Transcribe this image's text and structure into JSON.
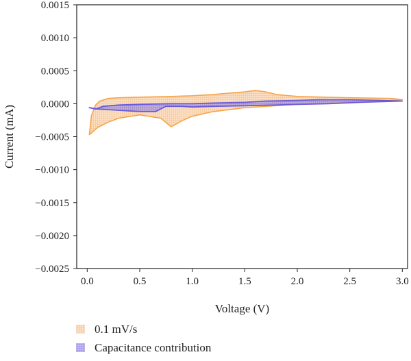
{
  "chart_data": {
    "type": "area",
    "xlabel": "Voltage (V)",
    "ylabel": "Current (mA)",
    "xlim": [
      -0.1,
      3.05
    ],
    "ylim": [
      -0.0025,
      0.0015
    ],
    "xticks": [
      0.0,
      0.5,
      1.0,
      1.5,
      2.0,
      2.5,
      3.0
    ],
    "xtick_labels": [
      "0.0",
      "0.5",
      "1.0",
      "1.5",
      "2.0",
      "2.5",
      "3.0"
    ],
    "yticks": [
      0.0015,
      0.001,
      0.0005,
      0.0,
      -0.0005,
      -0.001,
      -0.0015,
      -0.002,
      -0.0025
    ],
    "ytick_labels": [
      "0.0015",
      "0.0010",
      "0.0005",
      "0.0000",
      "−0.0005",
      "−0.0010",
      "−0.0015",
      "−0.0020",
      "−0.0025"
    ],
    "legend_position": "bottom-left-outside",
    "series": [
      {
        "name": "0.1 mV/s",
        "color": "#f5a54a",
        "fill": "#f8c79a",
        "x": [
          0.02,
          0.05,
          0.1,
          0.2,
          0.3,
          0.5,
          0.7,
          0.8,
          0.9,
          1.0,
          1.2,
          1.5,
          1.8,
          2.0,
          2.2,
          2.5,
          2.8,
          3.0,
          2.9,
          2.5,
          2.0,
          1.8,
          1.7,
          1.6,
          1.5,
          1.2,
          1.0,
          0.8,
          0.5,
          0.3,
          0.2,
          0.12,
          0.08,
          0.04,
          0.02
        ],
        "y": [
          -0.00047,
          -0.00043,
          -0.00036,
          -0.00028,
          -0.00022,
          -0.00017,
          -0.00022,
          -0.00035,
          -0.00026,
          -0.00019,
          -0.00012,
          -6e-05,
          -3e-05,
          -1e-05,
          0.0,
          2e-05,
          4e-05,
          6e-05,
          8e-05,
          9e-05,
          0.00011,
          0.00014,
          0.00018,
          0.0002,
          0.00018,
          0.00014,
          0.00012,
          0.00011,
          0.0001,
          9e-05,
          8e-05,
          4e-05,
          -2e-05,
          -0.00018,
          -0.00047
        ]
      },
      {
        "name": "Capacitance contribution",
        "color": "#6b5ad6",
        "fill": "#9a8ee6",
        "x": [
          0.02,
          0.1,
          0.3,
          0.5,
          0.65,
          0.75,
          0.9,
          1.0,
          1.2,
          1.5,
          1.8,
          2.0,
          2.3,
          2.6,
          3.0,
          2.8,
          2.5,
          2.2,
          2.0,
          1.7,
          1.5,
          1.2,
          1.0,
          0.8,
          0.5,
          0.3,
          0.15,
          0.08,
          0.02
        ],
        "y": [
          -6e-05,
          -8e-05,
          -0.0001,
          -0.00012,
          -0.00012,
          -4e-05,
          -4e-05,
          -5e-05,
          -4e-05,
          -3e-05,
          -2e-05,
          -1e-05,
          0.0,
          2e-05,
          4e-05,
          5e-05,
          6e-05,
          6e-05,
          5e-05,
          4e-05,
          2e-05,
          1e-05,
          0.0,
          0.0,
          -1e-05,
          -2e-05,
          -4e-05,
          -8e-05,
          -6e-05
        ]
      }
    ]
  }
}
